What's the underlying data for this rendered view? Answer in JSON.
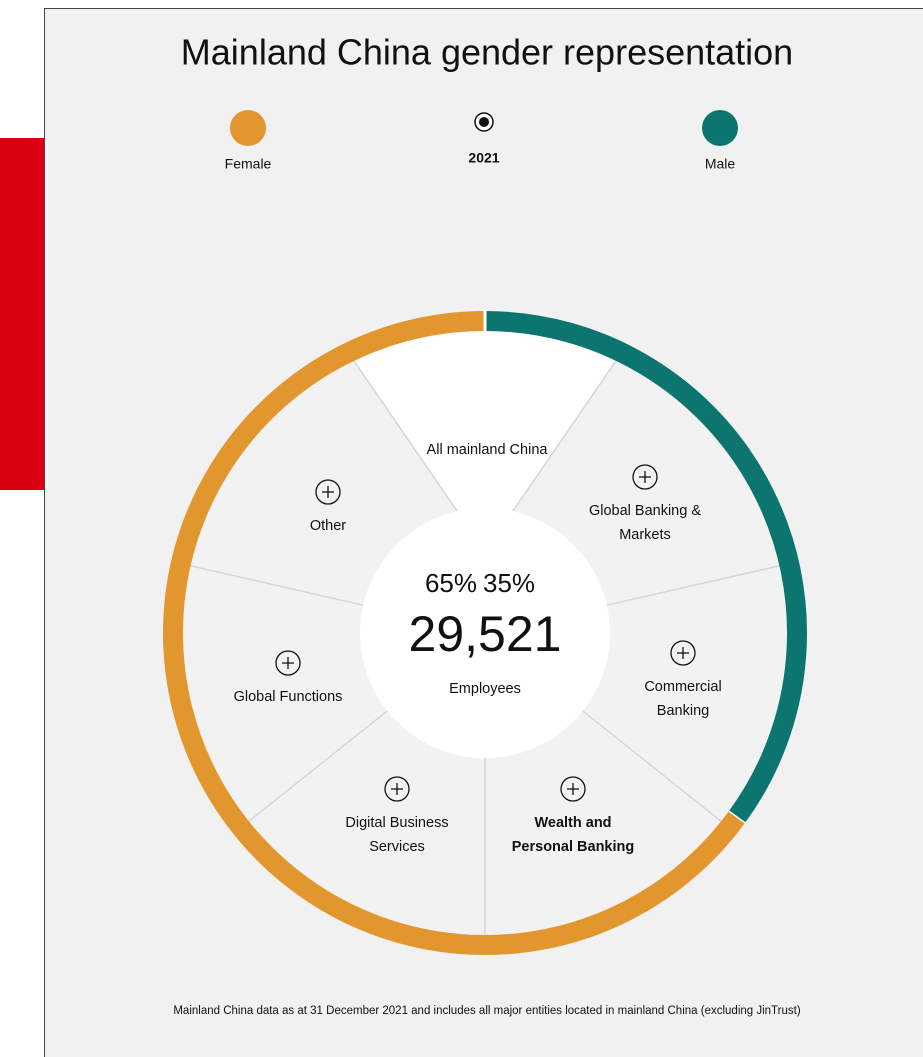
{
  "header": {
    "title": "Mainland China gender representation"
  },
  "legend": {
    "female": "Female",
    "year": "2021",
    "male": "Male"
  },
  "chart_data": {
    "type": "donut",
    "categories": [
      "Female",
      "Male"
    ],
    "values": [
      65,
      35
    ],
    "value_labels": [
      "65%",
      "35%"
    ],
    "colors": [
      "#e2972e",
      "#0c7570"
    ]
  },
  "center": {
    "total": "29,521",
    "caption": "Employees"
  },
  "segments": [
    {
      "lines": [
        "All mainland China"
      ]
    },
    {
      "lines": [
        "Global Banking &",
        "Markets"
      ]
    },
    {
      "lines": [
        "Commercial",
        "Banking"
      ]
    },
    {
      "lines": [
        "Wealth and",
        "Personal Banking"
      ]
    },
    {
      "lines": [
        "Digital Business",
        "Services"
      ]
    },
    {
      "lines": [
        "Global Functions"
      ]
    },
    {
      "lines": [
        "Other"
      ]
    }
  ],
  "footnote": "Mainland China data as at 31 December 2021 and includes all major entities located in mainland China (excluding JinTrust)"
}
